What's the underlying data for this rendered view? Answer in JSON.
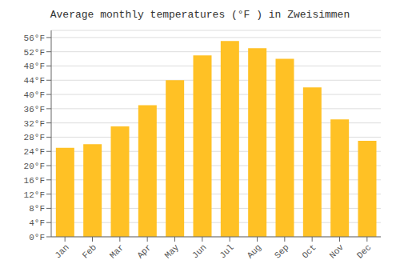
{
  "chart_data": {
    "type": "bar",
    "title": "Average monthly temperatures (°F ) in Zweisimmen",
    "categories": [
      "Jan",
      "Feb",
      "Mar",
      "Apr",
      "May",
      "Jun",
      "Jul",
      "Aug",
      "Sep",
      "Oct",
      "Nov",
      "Dec"
    ],
    "values": [
      25,
      26,
      31,
      37,
      44,
      51,
      55,
      53,
      50,
      42,
      33,
      27
    ],
    "color": "#FFC125",
    "ylim": [
      0,
      58
    ],
    "yticks": [
      {
        "value": 0,
        "label": "0°F"
      },
      {
        "value": 4,
        "label": "4°F"
      },
      {
        "value": 8,
        "label": "8°F"
      },
      {
        "value": 12,
        "label": "12°F"
      },
      {
        "value": 16,
        "label": "16°F"
      },
      {
        "value": 20,
        "label": "20°F"
      },
      {
        "value": 24,
        "label": "24°F"
      },
      {
        "value": 28,
        "label": "28°F"
      },
      {
        "value": 32,
        "label": "32°F"
      },
      {
        "value": 36,
        "label": "36°F"
      },
      {
        "value": 40,
        "label": "40°F"
      },
      {
        "value": 44,
        "label": "44°F"
      },
      {
        "value": 48,
        "label": "48°F"
      },
      {
        "value": 52,
        "label": "52°F"
      },
      {
        "value": 56,
        "label": "56°F"
      }
    ],
    "grid": true
  }
}
